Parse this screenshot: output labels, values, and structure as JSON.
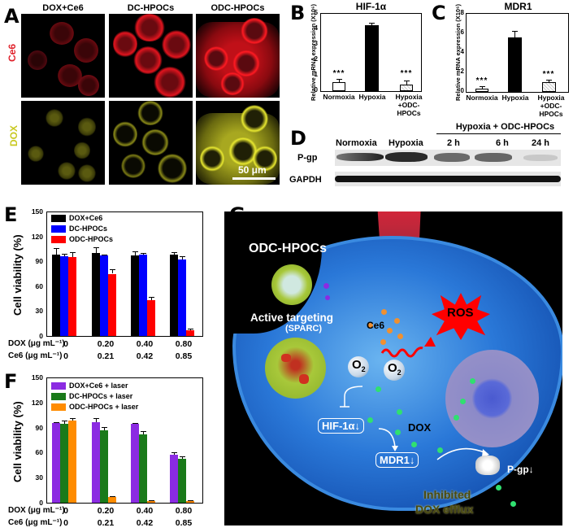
{
  "panels": {
    "A": {
      "label": "A",
      "columns": [
        "DOX+Ce6",
        "DC-HPOCs",
        "ODC-HPOCs"
      ],
      "rows": [
        {
          "label": "Ce6",
          "color": "#e0202a"
        },
        {
          "label": "DOX",
          "color": "#c8c820"
        }
      ],
      "scale_bar": "50 μm"
    },
    "B": {
      "label": "B"
    },
    "C": {
      "label": "C"
    },
    "D": {
      "label": "D",
      "group_header": "Hypoxia + ODC-HPOCs",
      "lanes": [
        "Normoxia",
        "Hypoxia",
        "2 h",
        "6 h",
        "24 h"
      ],
      "rows": [
        "P-gp",
        "GAPDH"
      ]
    },
    "E": {
      "label": "E"
    },
    "F": {
      "label": "F"
    },
    "G": {
      "label": "G",
      "texts": {
        "nanoparticle": "ODC-HPOCs",
        "targeting": "Active targeting",
        "sparc": "(SPARC)",
        "ce6": "Ce6",
        "ros": "ROS",
        "o2a": "O",
        "o2b": "O",
        "o2sub": "2",
        "hif": "HIF-1α↓",
        "mdr": "MDR1↓",
        "dox": "DOX",
        "pgp": "P-gp↓",
        "inhibited": "Inhibited",
        "efflux": "DOX efflux"
      }
    }
  },
  "chart_data": [
    {
      "panel": "B",
      "type": "bar",
      "title": "HIF-1α",
      "ylabel": "Relative mRNA expression (X10⁶)",
      "categories": [
        "Normoxia",
        "Hypoxia",
        "Hypoxia +ODC-HPOCs"
      ],
      "values": [
        0.6,
        4.2,
        0.45
      ],
      "errors": [
        0.15,
        0.15,
        0.25
      ],
      "significance": [
        "***",
        "",
        "***"
      ],
      "yticks": [
        0,
        1,
        2,
        3,
        4,
        5
      ],
      "ylim": [
        0,
        5
      ]
    },
    {
      "panel": "C",
      "type": "bar",
      "title": "MDR1",
      "ylabel": "Relative mRNA expression (X10⁶)",
      "categories": [
        "Normoxia",
        "Hypoxia",
        "Hypoxia +ODC-HPOCs"
      ],
      "values": [
        0.3,
        5.5,
        1.0
      ],
      "errors": [
        0.15,
        0.7,
        0.25
      ],
      "significance": [
        "***",
        "",
        "***"
      ],
      "yticks": [
        0,
        2,
        4,
        6,
        8
      ],
      "ylim": [
        0,
        8
      ]
    },
    {
      "panel": "E",
      "type": "bar",
      "ylabel": "Cell viability (%)",
      "categories": [
        "0",
        "0.20",
        "0.40",
        "0.80"
      ],
      "dose_rows": [
        {
          "label": "DOX (μg mL⁻¹)",
          "values": [
            "0",
            "0.20",
            "0.40",
            "0.80"
          ]
        },
        {
          "label": "Ce6  (μg mL⁻¹)",
          "values": [
            "0",
            "0.21",
            "0.42",
            "0.85"
          ]
        }
      ],
      "series": [
        {
          "name": "DOX+Ce6",
          "color": "#000000",
          "values": [
            98,
            100,
            97,
            98
          ],
          "errors": [
            8,
            7,
            5,
            3
          ]
        },
        {
          "name": "DC-HPOCs",
          "color": "#0000ff",
          "values": [
            96,
            97,
            98,
            92
          ],
          "errors": [
            3,
            1,
            2,
            4
          ]
        },
        {
          "name": "ODC-HPOCs",
          "color": "#ff0000",
          "values": [
            95,
            75,
            43,
            7
          ],
          "errors": [
            6,
            5,
            4,
            2
          ]
        }
      ],
      "yticks": [
        0,
        30,
        60,
        90,
        120,
        150
      ],
      "ylim": [
        0,
        150
      ],
      "legend_position": "upper left"
    },
    {
      "panel": "F",
      "type": "bar",
      "ylabel": "Cell viability (%)",
      "categories": [
        "0",
        "0.20",
        "0.40",
        "0.80"
      ],
      "dose_rows": [
        {
          "label": "DOX (μg mL⁻¹)",
          "values": [
            "0",
            "0.20",
            "0.40",
            "0.80"
          ]
        },
        {
          "label": "Ce6  (μg mL⁻¹)",
          "values": [
            "0",
            "0.21",
            "0.42",
            "0.85"
          ]
        }
      ],
      "series": [
        {
          "name": "DOX+Ce6 + laser",
          "color": "#8b2be2",
          "values": [
            95,
            96,
            94,
            57
          ],
          "errors": [
            1,
            5,
            1,
            3
          ]
        },
        {
          "name": "DC-HPOCs + laser",
          "color": "#1a7a1a",
          "values": [
            94,
            87,
            82,
            53
          ],
          "errors": [
            4,
            4,
            4,
            3
          ]
        },
        {
          "name": "ODC-HPOCs + laser",
          "color": "#ff8c00",
          "values": [
            98,
            7,
            2,
            2
          ],
          "errors": [
            3,
            1,
            0.5,
            0.5
          ]
        }
      ],
      "yticks": [
        0,
        30,
        60,
        90,
        120,
        150
      ],
      "ylim": [
        0,
        150
      ],
      "legend_position": "upper left"
    }
  ]
}
